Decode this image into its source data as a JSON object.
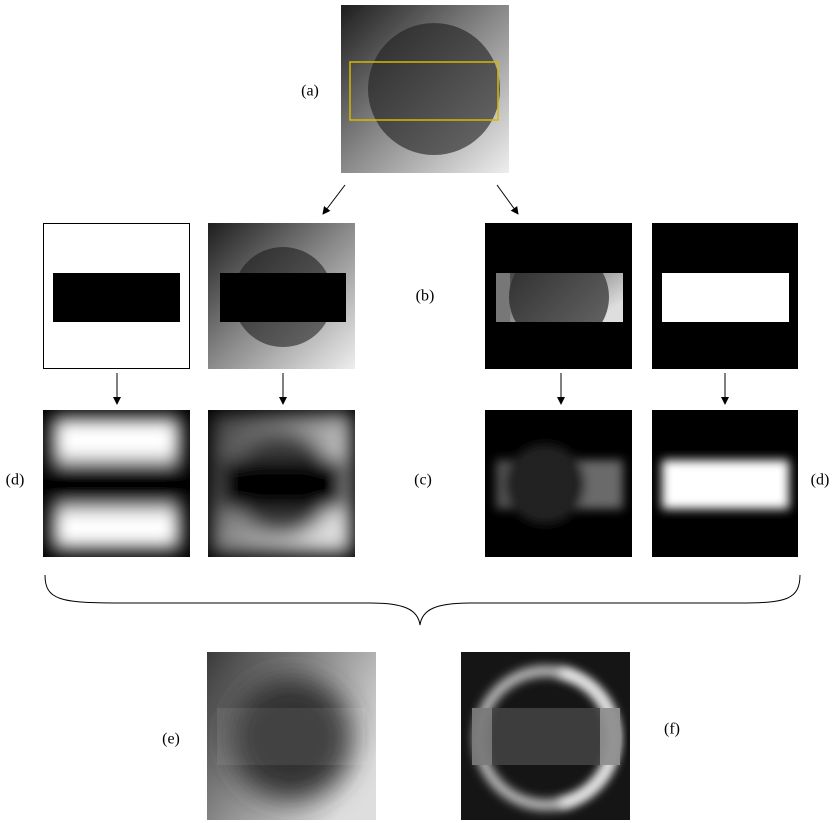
{
  "labels": {
    "a": "(a)",
    "b": "(b)",
    "c": "(c)",
    "d_left": "(d)",
    "d_right": "(d)",
    "e": "(e)",
    "f": "(f)"
  }
}
